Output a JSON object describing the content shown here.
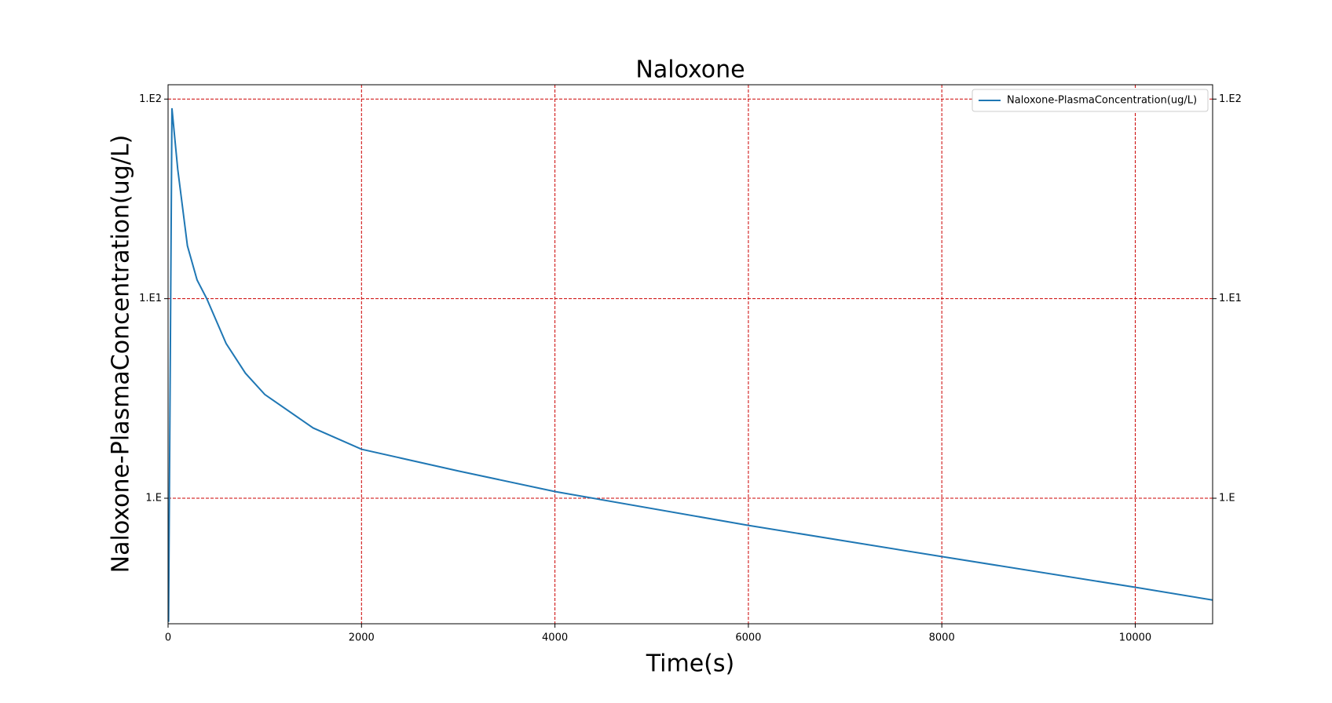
{
  "chart_data": {
    "type": "line",
    "title": "Naloxone",
    "x_label": "Time(s)",
    "y_label": "Naloxone-PlasmaConcentration(ug/L)",
    "log_y": true,
    "grid": true,
    "grid_color": "#cc0000",
    "legend": "upper right",
    "xlim": [
      0,
      10800
    ],
    "xticks": [
      0,
      2000,
      4000,
      6000,
      8000,
      10000
    ],
    "ylim": [
      0.235,
      118
    ],
    "yticks": [
      {
        "value": 1,
        "label": "1.E"
      },
      {
        "value": 10,
        "label": "1.E1"
      },
      {
        "value": 100,
        "label": "1.E2"
      }
    ],
    "x": [
      5,
      40,
      100,
      200,
      300,
      400,
      600,
      800,
      1000,
      1500,
      2000,
      3000,
      4000,
      6000,
      8000,
      10000,
      10800
    ],
    "series": [
      {
        "name": "Naloxone-PlasmaConcentration(ug/L)",
        "color": "#1f77b4",
        "values": [
          0.24,
          90,
          44.5,
          18.4,
          12.4,
          10,
          5.96,
          4.23,
          3.31,
          2.25,
          1.76,
          1.37,
          1.08,
          0.731,
          0.51,
          0.358,
          0.309
        ]
      }
    ]
  }
}
